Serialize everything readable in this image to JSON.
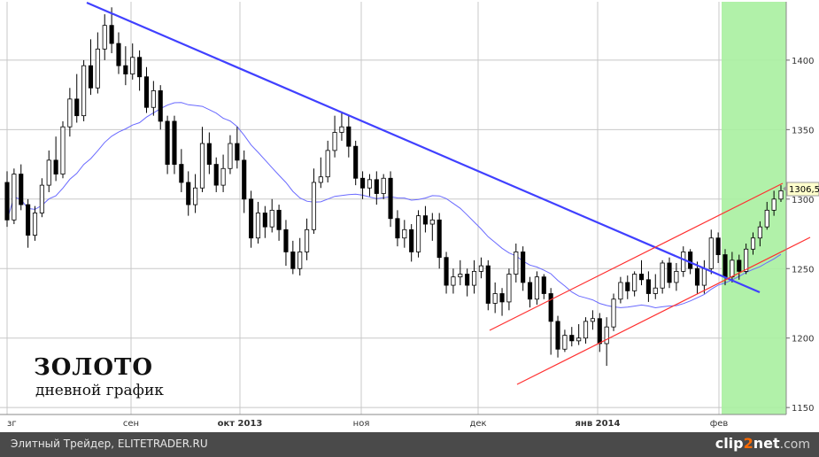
{
  "chart_data": {
    "type": "candlestick",
    "title": "ЗОЛОТО",
    "subtitle": "дневной график",
    "y_ticks": [
      1150,
      1200,
      1250,
      1300,
      1350,
      1400
    ],
    "y_ticks_labels": [
      "1150",
      "1200",
      "1250",
      "1300",
      "1350",
      "1400"
    ],
    "ylim": [
      1145,
      1442
    ],
    "x_ticks_labels": [
      "зг",
      "сен",
      "окт 2013",
      "ноя",
      "дек",
      "янв 2014",
      "фев"
    ],
    "last_price_label": "1306,5",
    "last_price": 1306.5,
    "highlight_zone": "фев",
    "trendlines": [
      {
        "name": "downtrend",
        "color": "#4040ff"
      },
      {
        "name": "channel-upper",
        "color": "#ff3030"
      },
      {
        "name": "channel-lower",
        "color": "#ff3030"
      }
    ],
    "candles": [
      [
        1312,
        1285,
        1320,
        1280
      ],
      [
        1285,
        1318,
        1322,
        1282
      ],
      [
        1318,
        1296,
        1325,
        1292
      ],
      [
        1296,
        1274,
        1300,
        1265
      ],
      [
        1274,
        1290,
        1295,
        1270
      ],
      [
        1290,
        1310,
        1315,
        1287
      ],
      [
        1310,
        1328,
        1335,
        1305
      ],
      [
        1328,
        1318,
        1345,
        1313
      ],
      [
        1318,
        1352,
        1356,
        1315
      ],
      [
        1352,
        1372,
        1380,
        1345
      ],
      [
        1372,
        1360,
        1390,
        1355
      ],
      [
        1360,
        1396,
        1400,
        1356
      ],
      [
        1396,
        1380,
        1415,
        1375
      ],
      [
        1380,
        1408,
        1420,
        1376
      ],
      [
        1408,
        1425,
        1433,
        1400
      ],
      [
        1425,
        1412,
        1438,
        1405
      ],
      [
        1412,
        1396,
        1420,
        1390
      ],
      [
        1396,
        1390,
        1410,
        1382
      ],
      [
        1390,
        1402,
        1412,
        1386
      ],
      [
        1402,
        1388,
        1407,
        1378
      ],
      [
        1388,
        1366,
        1395,
        1362
      ],
      [
        1366,
        1378,
        1385,
        1360
      ],
      [
        1378,
        1356,
        1382,
        1350
      ],
      [
        1356,
        1325,
        1360,
        1318
      ],
      [
        1356,
        1325,
        1360,
        1318
      ],
      [
        1325,
        1312,
        1336,
        1305
      ],
      [
        1312,
        1296,
        1320,
        1288
      ],
      [
        1296,
        1308,
        1318,
        1290
      ],
      [
        1308,
        1340,
        1352,
        1305
      ],
      [
        1340,
        1325,
        1348,
        1318
      ],
      [
        1325,
        1310,
        1330,
        1305
      ],
      [
        1310,
        1322,
        1332,
        1305
      ],
      [
        1322,
        1340,
        1346,
        1318
      ],
      [
        1340,
        1328,
        1352,
        1322
      ],
      [
        1328,
        1300,
        1335,
        1290
      ],
      [
        1300,
        1272,
        1306,
        1265
      ],
      [
        1272,
        1290,
        1298,
        1268
      ],
      [
        1290,
        1280,
        1295,
        1272
      ],
      [
        1280,
        1292,
        1300,
        1276
      ],
      [
        1292,
        1278,
        1296,
        1270
      ],
      [
        1278,
        1262,
        1285,
        1252
      ],
      [
        1262,
        1250,
        1270,
        1246
      ],
      [
        1250,
        1262,
        1272,
        1245
      ],
      [
        1262,
        1278,
        1286,
        1256
      ],
      [
        1278,
        1312,
        1322,
        1275
      ],
      [
        1312,
        1316,
        1330,
        1308
      ],
      [
        1316,
        1335,
        1342,
        1312
      ],
      [
        1335,
        1348,
        1360,
        1330
      ],
      [
        1348,
        1352,
        1362,
        1342
      ],
      [
        1352,
        1338,
        1360,
        1330
      ],
      [
        1338,
        1315,
        1342,
        1310
      ],
      [
        1315,
        1308,
        1320,
        1300
      ],
      [
        1308,
        1314,
        1318,
        1302
      ],
      [
        1314,
        1304,
        1320,
        1296
      ],
      [
        1304,
        1315,
        1318,
        1300
      ],
      [
        1315,
        1286,
        1320,
        1280
      ],
      [
        1286,
        1272,
        1292,
        1266
      ],
      [
        1272,
        1278,
        1285,
        1265
      ],
      [
        1278,
        1262,
        1282,
        1255
      ],
      [
        1262,
        1288,
        1292,
        1258
      ],
      [
        1288,
        1282,
        1295,
        1276
      ],
      [
        1282,
        1285,
        1290,
        1270
      ],
      [
        1285,
        1258,
        1290,
        1250
      ],
      [
        1258,
        1238,
        1262,
        1232
      ],
      [
        1238,
        1244,
        1250,
        1232
      ],
      [
        1244,
        1246,
        1256,
        1238
      ],
      [
        1246,
        1238,
        1250,
        1230
      ],
      [
        1238,
        1248,
        1256,
        1232
      ],
      [
        1248,
        1252,
        1258,
        1243
      ],
      [
        1252,
        1225,
        1256,
        1220
      ],
      [
        1225,
        1232,
        1240,
        1218
      ],
      [
        1232,
        1226,
        1236,
        1216
      ],
      [
        1226,
        1246,
        1250,
        1220
      ],
      [
        1246,
        1262,
        1268,
        1240
      ],
      [
        1262,
        1240,
        1266,
        1234
      ],
      [
        1240,
        1228,
        1244,
        1222
      ],
      [
        1228,
        1244,
        1248,
        1224
      ],
      [
        1244,
        1232,
        1246,
        1228
      ],
      [
        1232,
        1212,
        1236,
        1188
      ],
      [
        1212,
        1192,
        1216,
        1186
      ],
      [
        1192,
        1202,
        1206,
        1190
      ],
      [
        1202,
        1198,
        1208,
        1194
      ],
      [
        1198,
        1200,
        1210,
        1195
      ],
      [
        1200,
        1212,
        1215,
        1196
      ],
      [
        1212,
        1214,
        1220,
        1206
      ],
      [
        1214,
        1196,
        1218,
        1190
      ],
      [
        1196,
        1208,
        1215,
        1180
      ],
      [
        1208,
        1228,
        1232,
        1205
      ],
      [
        1228,
        1240,
        1244,
        1225
      ],
      [
        1240,
        1234,
        1245,
        1228
      ],
      [
        1234,
        1246,
        1248,
        1230
      ],
      [
        1246,
        1242,
        1256,
        1238
      ],
      [
        1242,
        1232,
        1248,
        1226
      ],
      [
        1232,
        1236,
        1246,
        1228
      ],
      [
        1236,
        1254,
        1256,
        1232
      ],
      [
        1254,
        1240,
        1258,
        1236
      ],
      [
        1240,
        1248,
        1254,
        1234
      ],
      [
        1248,
        1262,
        1266,
        1244
      ],
      [
        1262,
        1250,
        1264,
        1246
      ],
      [
        1250,
        1238,
        1255,
        1232
      ],
      [
        1238,
        1250,
        1256,
        1232
      ],
      [
        1250,
        1272,
        1278,
        1246
      ],
      [
        1272,
        1260,
        1276,
        1254
      ],
      [
        1260,
        1244,
        1264,
        1238
      ],
      [
        1244,
        1256,
        1262,
        1240
      ],
      [
        1256,
        1248,
        1260,
        1242
      ],
      [
        1248,
        1264,
        1268,
        1246
      ],
      [
        1264,
        1272,
        1276,
        1260
      ],
      [
        1272,
        1280,
        1284,
        1266
      ],
      [
        1280,
        1292,
        1298,
        1278
      ],
      [
        1292,
        1300,
        1306,
        1288
      ],
      [
        1300,
        1306,
        1310,
        1298
      ]
    ]
  },
  "annotations": {
    "footer_left": "Элитный Трейдер, ELITETRADER.RU",
    "footer_brand_a": "clip",
    "footer_brand_b": "2",
    "footer_brand_c": "net",
    "footer_brand_d": ".com"
  },
  "colors": {
    "up_candle": "#ffffff",
    "down_candle": "#000000",
    "ma_line": "#6a6aff",
    "grid": "#c8c8c8",
    "highlight": "#a8f0a0",
    "downtrend": "#4040ff",
    "channel": "#ff3030"
  }
}
